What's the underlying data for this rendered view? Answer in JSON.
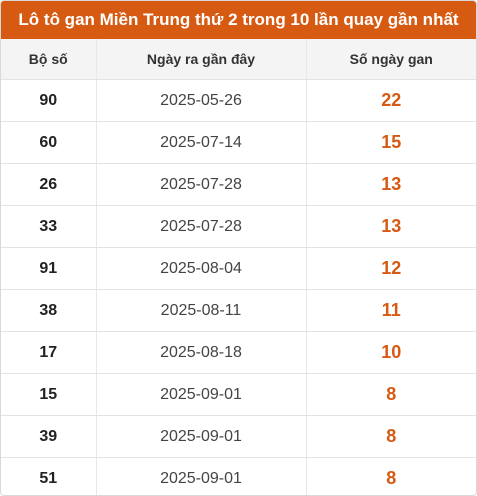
{
  "title": "Lô tô gan Miền Trung thứ 2 trong 10 lần quay gần nhất",
  "colors": {
    "accent": "#d75a12",
    "header_bg": "#f4f4f4"
  },
  "table": {
    "headers": [
      "Bộ số",
      "Ngày ra gần đây",
      "Số ngày gan"
    ],
    "rows": [
      {
        "number": "90",
        "date": "2025-05-26",
        "days": "22"
      },
      {
        "number": "60",
        "date": "2025-07-14",
        "days": "15"
      },
      {
        "number": "26",
        "date": "2025-07-28",
        "days": "13"
      },
      {
        "number": "33",
        "date": "2025-07-28",
        "days": "13"
      },
      {
        "number": "91",
        "date": "2025-08-04",
        "days": "12"
      },
      {
        "number": "38",
        "date": "2025-08-11",
        "days": "11"
      },
      {
        "number": "17",
        "date": "2025-08-18",
        "days": "10"
      },
      {
        "number": "15",
        "date": "2025-09-01",
        "days": "8"
      },
      {
        "number": "39",
        "date": "2025-09-01",
        "days": "8"
      },
      {
        "number": "51",
        "date": "2025-09-01",
        "days": "8"
      }
    ]
  }
}
